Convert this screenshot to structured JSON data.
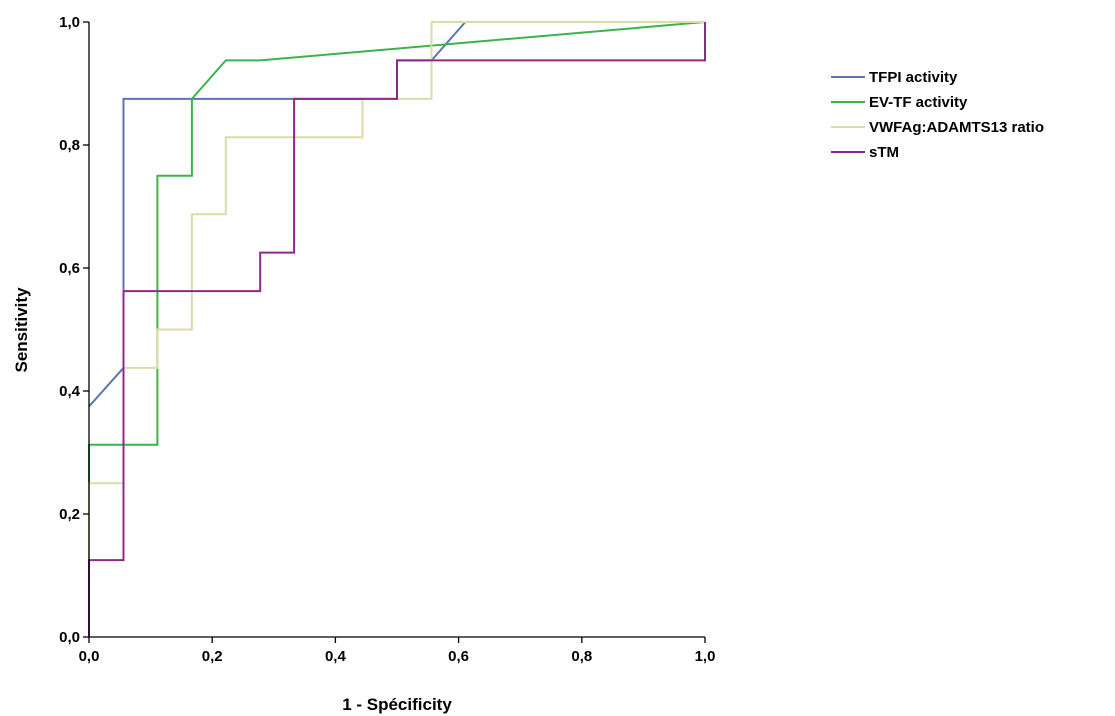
{
  "chart_data": {
    "type": "line",
    "xlabel": "1 - Spécificity",
    "ylabel": "Sensitivity",
    "xlim": [
      0,
      1
    ],
    "ylim": [
      0,
      1
    ],
    "xticks": [
      "0,0",
      "0,2",
      "0,4",
      "0,6",
      "0,8",
      "1,0"
    ],
    "yticks": [
      "0,0",
      "0,2",
      "0,4",
      "0,6",
      "0,8",
      "1,0"
    ],
    "grid": false,
    "legend_position": "right",
    "series": [
      {
        "name": "TFPI activity",
        "color": "#5b75b0",
        "points": [
          [
            0,
            0.375
          ],
          [
            0.056,
            0.4375
          ],
          [
            0.056,
            0.875
          ],
          [
            0.5,
            0.875
          ],
          [
            0.5,
            0.9375
          ],
          [
            0.556,
            0.9375
          ],
          [
            0.611,
            1.0
          ],
          [
            1.0,
            1.0
          ]
        ]
      },
      {
        "name": "EV-TF activity",
        "color": "#3cb44b",
        "points": [
          [
            0,
            0.25
          ],
          [
            0,
            0.3125
          ],
          [
            0.111,
            0.3125
          ],
          [
            0.111,
            0.75
          ],
          [
            0.167,
            0.75
          ],
          [
            0.167,
            0.875
          ],
          [
            0.222,
            0.9375
          ],
          [
            0.278,
            0.9375
          ],
          [
            1.0,
            1.0
          ]
        ]
      },
      {
        "name": "VWFAg:ADAMTS13 ratio",
        "color": "#dddba8",
        "points": [
          [
            0,
            0.125
          ],
          [
            0,
            0.25
          ],
          [
            0.056,
            0.25
          ],
          [
            0.056,
            0.4375
          ],
          [
            0.111,
            0.4375
          ],
          [
            0.111,
            0.5
          ],
          [
            0.167,
            0.5
          ],
          [
            0.167,
            0.6875
          ],
          [
            0.222,
            0.6875
          ],
          [
            0.222,
            0.8125
          ],
          [
            0.444,
            0.8125
          ],
          [
            0.444,
            0.875
          ],
          [
            0.556,
            0.875
          ],
          [
            0.556,
            1.0
          ],
          [
            1.0,
            1.0
          ]
        ]
      },
      {
        "name": "sTM",
        "color": "#8b2a8b",
        "points": [
          [
            0,
            0
          ],
          [
            0,
            0.125
          ],
          [
            0.056,
            0.125
          ],
          [
            0.056,
            0.5625
          ],
          [
            0.278,
            0.5625
          ],
          [
            0.278,
            0.625
          ],
          [
            0.333,
            0.625
          ],
          [
            0.333,
            0.875
          ],
          [
            0.5,
            0.875
          ],
          [
            0.5,
            0.9375
          ],
          [
            1.0,
            0.9375
          ],
          [
            1.0,
            1.0
          ]
        ]
      }
    ]
  }
}
